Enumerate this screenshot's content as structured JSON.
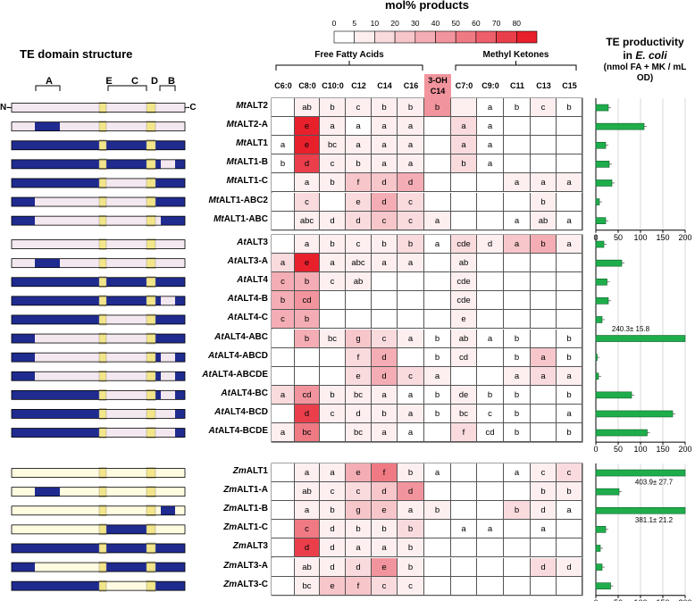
{
  "scale": {
    "title": "mol% products",
    "ticks": [
      "0",
      "5",
      "10",
      "20",
      "30",
      "40",
      "50",
      "60",
      "70",
      "80"
    ],
    "colors": [
      "#ffffff",
      "#fdeff0",
      "#f9dbde",
      "#f7c6cb",
      "#f4adb4",
      "#f2949d",
      "#ef7a84",
      "#ed5f6a",
      "#ea3f4b",
      "#e8202c"
    ]
  },
  "headers": {
    "domain_title": "TE domain structure",
    "productivity_title": "TE productivity",
    "productivity_in": "in",
    "productivity_organism": "E. coli",
    "productivity_units": "(nmol FA + MK / mL OD)",
    "ffa_group": "Free Fatty Acids",
    "mk_group": "Methyl Ketones"
  },
  "domains": {
    "n_term": "N-",
    "c_term": "-C",
    "labels": [
      "A",
      "E",
      "C",
      "D",
      "B"
    ]
  },
  "columns": [
    "C6:0",
    "C8:0",
    "C10:0",
    "C12",
    "C14",
    "C16",
    "3-OH C14",
    "C7:0",
    "C9:0",
    "C11",
    "C13",
    "C15"
  ],
  "groups": [
    {
      "rows": [
        {
          "name": "MtALT2",
          "prefix": "Mt",
          "suffix": "ALT2",
          "domain": "pppppppppp",
          "cells": [
            "",
            "ab",
            "b",
            "c",
            "b",
            "b",
            "b",
            "",
            "a",
            "b",
            "c",
            "b"
          ],
          "levels": [
            0,
            1,
            1,
            1,
            1,
            1,
            5,
            1,
            0,
            0,
            1,
            0
          ],
          "productivity": 28
        },
        {
          "name": "MtALT2-A",
          "prefix": "Mt",
          "suffix": "ALT2-A",
          "domain": "pbpppppppp",
          "cells": [
            "",
            "e",
            "a",
            "a",
            "a",
            "a",
            "",
            "a",
            "a",
            "",
            "",
            ""
          ],
          "levels": [
            0,
            9,
            1,
            0,
            1,
            1,
            0,
            2,
            0,
            0,
            0,
            0
          ],
          "productivity": 108
        },
        {
          "name": "MtALT1",
          "prefix": "Mt",
          "suffix": "ALT1",
          "domain": "bbbbbbbbbb",
          "cells": [
            "a",
            "e",
            "bc",
            "a",
            "a",
            "a",
            "",
            "a",
            "a",
            "",
            "",
            ""
          ],
          "levels": [
            0,
            9,
            1,
            1,
            1,
            1,
            0,
            2,
            0,
            0,
            0,
            0
          ],
          "productivity": 22
        },
        {
          "name": "MtALT1-B",
          "prefix": "Mt",
          "suffix": "ALT1-B",
          "domain": "bbbbbbbbpb",
          "cells": [
            "b",
            "d",
            "c",
            "b",
            "a",
            "a",
            "",
            "b",
            "a",
            "",
            "",
            ""
          ],
          "levels": [
            0,
            8,
            1,
            1,
            1,
            1,
            0,
            2,
            0,
            0,
            0,
            0
          ],
          "productivity": 30
        },
        {
          "name": "MtALT1-C",
          "prefix": "Mt",
          "suffix": "ALT1-C",
          "domain": "bbbpppbbbb",
          "cells": [
            "",
            "a",
            "b",
            "f",
            "d",
            "d",
            "",
            "",
            "",
            "a",
            "a",
            "a"
          ],
          "levels": [
            0,
            1,
            1,
            3,
            3,
            4,
            0,
            0,
            0,
            1,
            1,
            1
          ],
          "productivity": 36
        },
        {
          "name": "MtALT1-ABC2",
          "prefix": "Mt",
          "suffix": "ALT1-ABC2",
          "domain": "bppbpppbbb",
          "cells": [
            "",
            "c",
            "",
            "e",
            "d",
            "c",
            "",
            "",
            "",
            "",
            "b",
            ""
          ],
          "levels": [
            0,
            2,
            0,
            2,
            4,
            2,
            0,
            0,
            0,
            0,
            1,
            0
          ],
          "productivity": 8
        },
        {
          "name": "MtALT1-ABC",
          "prefix": "Mt",
          "suffix": "ALT1-ABC",
          "domain": "bppbppppbb",
          "cells": [
            "",
            "abc",
            "d",
            "d",
            "c",
            "c",
            "a",
            "",
            "",
            "a",
            "ab",
            "a"
          ],
          "levels": [
            0,
            1,
            1,
            2,
            3,
            2,
            1,
            0,
            0,
            0,
            1,
            0
          ],
          "productivity": 22
        }
      ]
    },
    {
      "rows": [
        {
          "name": "AtALT3",
          "prefix": "At",
          "suffix": "ALT3",
          "domain": "pppppppppp",
          "cells": [
            "",
            "a",
            "b",
            "c",
            "b",
            "b",
            "a",
            "cde",
            "d",
            "a",
            "b",
            "a"
          ],
          "levels": [
            0,
            1,
            1,
            1,
            1,
            2,
            0,
            2,
            1,
            3,
            4,
            1
          ],
          "productivity": 18
        },
        {
          "name": "AtALT3-A",
          "prefix": "At",
          "suffix": "ALT3-A",
          "domain": "pbpppppppp",
          "cells": [
            "a",
            "e",
            "a",
            "abc",
            "a",
            "a",
            "",
            "ab",
            "",
            "",
            "",
            ""
          ],
          "levels": [
            2,
            9,
            1,
            1,
            1,
            1,
            0,
            1,
            0,
            0,
            0,
            0
          ],
          "productivity": 58
        },
        {
          "name": "AtALT4",
          "prefix": "At",
          "suffix": "ALT4",
          "domain": "bbbbbbbbbb",
          "cells": [
            "c",
            "b",
            "c",
            "ab",
            "",
            "",
            "",
            "cde",
            "",
            "",
            "",
            ""
          ],
          "levels": [
            4,
            4,
            1,
            1,
            0,
            0,
            0,
            1,
            0,
            0,
            0,
            0
          ],
          "productivity": 25
        },
        {
          "name": "AtALT4-B",
          "prefix": "At",
          "suffix": "ALT4-B",
          "domain": "bbbbbbbbpb",
          "cells": [
            "b",
            "cd",
            "",
            "",
            "",
            "",
            "",
            "cde",
            "",
            "",
            "",
            ""
          ],
          "levels": [
            4,
            5,
            0,
            0,
            0,
            0,
            0,
            1,
            0,
            0,
            0,
            0
          ],
          "productivity": 28
        },
        {
          "name": "AtALT4-C",
          "prefix": "At",
          "suffix": "ALT4-C",
          "domain": "bbbpppbbbb",
          "cells": [
            "c",
            "b",
            "",
            "",
            "",
            "",
            "",
            "e",
            "",
            "",
            "",
            ""
          ],
          "levels": [
            4,
            4,
            0,
            0,
            0,
            0,
            0,
            1,
            0,
            0,
            0,
            0
          ],
          "productivity": 14
        },
        {
          "name": "AtALT4-ABC",
          "prefix": "At",
          "suffix": "ALT4-ABC",
          "domain": "bppbpppbbb",
          "cells": [
            "",
            "b",
            "bc",
            "g",
            "c",
            "a",
            "b",
            "ab",
            "a",
            "b",
            "",
            "b"
          ],
          "levels": [
            0,
            4,
            1,
            3,
            2,
            1,
            0,
            1,
            0,
            0,
            0,
            0
          ],
          "productivity": 240.3,
          "bar_label": "240.3± 15.8"
        },
        {
          "name": "AtALT4-ABCD",
          "prefix": "At",
          "suffix": "ALT4-ABCD",
          "domain": "bppbpppbpb",
          "cells": [
            "",
            "",
            "",
            "f",
            "d",
            "",
            "b",
            "cd",
            "",
            "b",
            "a",
            "b"
          ],
          "levels": [
            0,
            0,
            0,
            2,
            4,
            0,
            0,
            1,
            0,
            0,
            3,
            0
          ],
          "productivity": 3
        },
        {
          "name": "AtALT4-ABCDE",
          "prefix": "At",
          "suffix": "ALT4-ABCDE",
          "domain": "bppppppbpb",
          "cells": [
            "",
            "",
            "",
            "e",
            "d",
            "c",
            "a",
            "",
            "",
            "a",
            "a",
            "a"
          ],
          "levels": [
            0,
            0,
            0,
            2,
            4,
            2,
            1,
            0,
            0,
            1,
            2,
            1
          ],
          "productivity": 6
        },
        {
          "name": "AtALT4-BC",
          "prefix": "At",
          "suffix": "ALT4-BC",
          "domain": "bbbpppbbpb",
          "cells": [
            "a",
            "cd",
            "b",
            "bc",
            "a",
            "a",
            "b",
            "de",
            "b",
            "b",
            "",
            "b"
          ],
          "levels": [
            2,
            5,
            1,
            1,
            1,
            0,
            0,
            1,
            0,
            0,
            0,
            0
          ],
          "productivity": 80
        },
        {
          "name": "AtALT4-BCD",
          "prefix": "At",
          "suffix": "ALT4-BCD",
          "domain": "bbbpppbppb",
          "cells": [
            "",
            "d",
            "c",
            "d",
            "b",
            "a",
            "b",
            "bc",
            "c",
            "b",
            "",
            "a"
          ],
          "levels": [
            0,
            8,
            1,
            1,
            1,
            1,
            0,
            1,
            0,
            0,
            0,
            0
          ],
          "productivity": 172
        },
        {
          "name": "AtALT4-BCDE",
          "prefix": "At",
          "suffix": "ALT4-BCDE",
          "domain": "bbbppppppb",
          "cells": [
            "a",
            "bc",
            "",
            "bc",
            "a",
            "a",
            "",
            "f",
            "cd",
            "b",
            "",
            "b"
          ],
          "levels": [
            1,
            6,
            0,
            1,
            1,
            0,
            0,
            2,
            0,
            0,
            0,
            0
          ],
          "productivity": 115
        }
      ]
    },
    {
      "rows": [
        {
          "name": "ZmALT1",
          "prefix": "Zm",
          "suffix": "ALT1",
          "domain": "yyyyyyyyyy",
          "cells": [
            "",
            "a",
            "a",
            "e",
            "f",
            "b",
            "a",
            "",
            "",
            "a",
            "c",
            "c"
          ],
          "levels": [
            0,
            1,
            1,
            4,
            6,
            1,
            0,
            0,
            0,
            0,
            1,
            2
          ],
          "productivity": 403.9,
          "bar_label": "403.9± 27.7"
        },
        {
          "name": "ZmALT1-A",
          "prefix": "Zm",
          "suffix": "ALT1-A",
          "domain": "ybyyyyyyyy",
          "cells": [
            "",
            "ab",
            "c",
            "c",
            "d",
            "d",
            "",
            "",
            "",
            "",
            "b",
            "b"
          ],
          "levels": [
            0,
            1,
            1,
            2,
            3,
            5,
            0,
            0,
            0,
            0,
            1,
            1
          ],
          "productivity": 52
        },
        {
          "name": "ZmALT1-B",
          "prefix": "Zm",
          "suffix": "ALT1-B",
          "domain": "yyyyyyyyby",
          "cells": [
            "",
            "a",
            "b",
            "g",
            "e",
            "a",
            "b",
            "",
            "",
            "b",
            "d",
            "a"
          ],
          "levels": [
            0,
            1,
            1,
            3,
            3,
            1,
            1,
            0,
            0,
            2,
            1,
            0
          ],
          "productivity": 381.1,
          "bar_label": "381.1± 21.2"
        },
        {
          "name": "ZmALT1-C",
          "prefix": "Zm",
          "suffix": "ALT1-C",
          "domain": "yyybbbyyyy",
          "cells": [
            "",
            "c",
            "d",
            "b",
            "b",
            "b",
            "",
            "a",
            "a",
            "",
            "a",
            ""
          ],
          "levels": [
            0,
            6,
            1,
            1,
            1,
            2,
            0,
            0,
            0,
            0,
            0,
            0
          ],
          "productivity": 22
        },
        {
          "name": "ZmALT3",
          "prefix": "Zm",
          "suffix": "ALT3",
          "domain": "bbbbbbbbbb",
          "cells": [
            "",
            "d",
            "d",
            "a",
            "a",
            "b",
            "",
            "",
            "",
            "",
            "",
            ""
          ],
          "levels": [
            0,
            8,
            1,
            1,
            1,
            1,
            0,
            0,
            0,
            0,
            0,
            0
          ],
          "productivity": 10
        },
        {
          "name": "ZmALT3-A",
          "prefix": "Zm",
          "suffix": "ALT3-A",
          "domain": "byybbbbbbb",
          "cells": [
            "",
            "ab",
            "d",
            "d",
            "e",
            "b",
            "",
            "",
            "",
            "",
            "d",
            "d"
          ],
          "levels": [
            0,
            1,
            1,
            2,
            5,
            1,
            0,
            0,
            0,
            0,
            2,
            1
          ],
          "productivity": 14
        },
        {
          "name": "ZmALT3-C",
          "prefix": "Zm",
          "suffix": "ALT3-C",
          "domain": "bbbyyybbbb",
          "cells": [
            "",
            "bc",
            "e",
            "f",
            "c",
            "c",
            "",
            "",
            "",
            "",
            "",
            ""
          ],
          "levels": [
            0,
            1,
            3,
            3,
            2,
            1,
            0,
            0,
            0,
            0,
            0,
            0
          ],
          "productivity": 33
        }
      ]
    }
  ],
  "axis": {
    "ticks": [
      "0",
      "50",
      "100",
      "150",
      "200"
    ],
    "max": 200
  }
}
